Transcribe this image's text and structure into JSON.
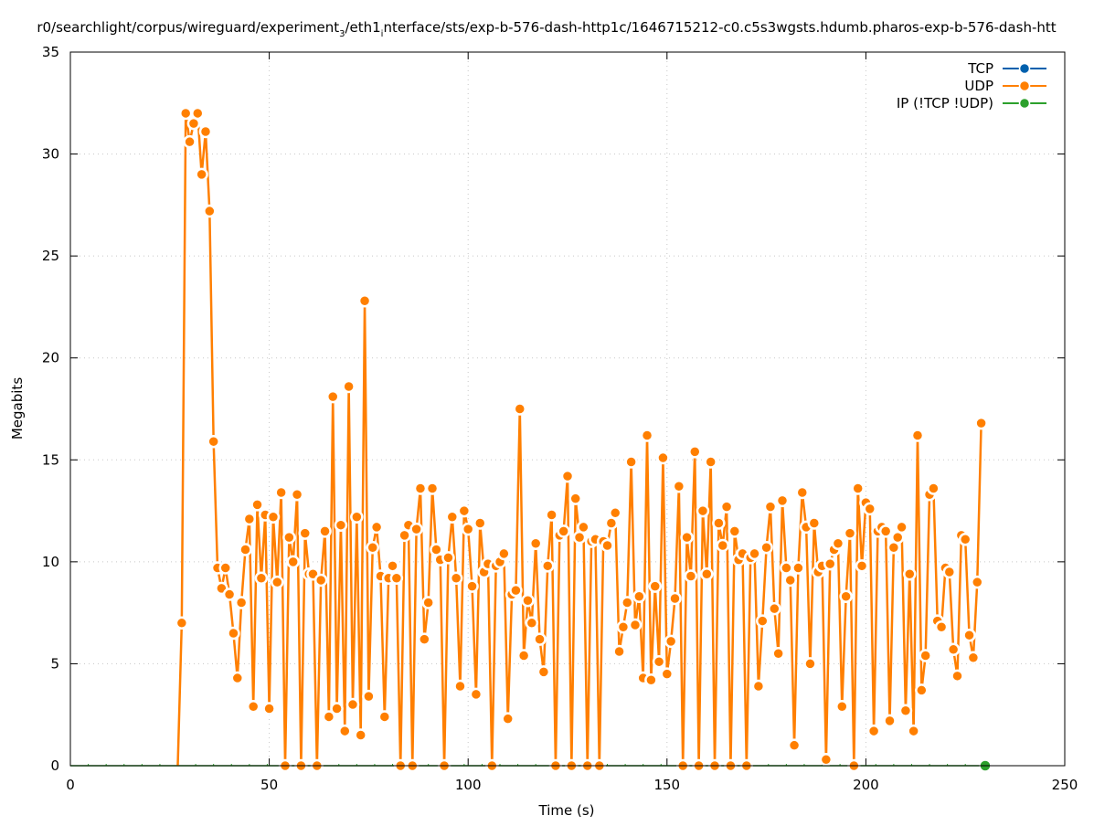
{
  "chart_data": {
    "type": "line",
    "title_parts": [
      "r0/searchlight/corpus/wireguard/experiment",
      "3",
      "/eth1",
      "i",
      "nterface/sts/exp-b-576-dash-http1c/1646715212-c0.c5s3wgsts.hdumb.pharos-exp-b-576-dash-htt"
    ],
    "xlabel": "Time (s)",
    "ylabel": "Megabits",
    "xlim": [
      0,
      250
    ],
    "ylim": [
      0,
      35
    ],
    "xticks": [
      0,
      50,
      100,
      150,
      200,
      250
    ],
    "yticks": [
      0,
      5,
      10,
      15,
      20,
      25,
      30,
      35
    ],
    "grid": true,
    "legend_position": "top-right",
    "series": [
      {
        "name": "TCP",
        "color": "#0060ad",
        "x": [],
        "values": []
      },
      {
        "name": "UDP",
        "color": "#ff7f00",
        "x_start": 27,
        "x_step": 1,
        "values": [
          0,
          7.0,
          32.0,
          30.6,
          31.5,
          32.0,
          29.0,
          31.1,
          27.2,
          15.9,
          9.7,
          8.7,
          9.7,
          8.4,
          6.5,
          4.3,
          8.0,
          10.6,
          12.1,
          2.9,
          12.8,
          9.2,
          12.3,
          2.8,
          12.2,
          9.0,
          13.4,
          0,
          11.2,
          10.0,
          13.3,
          0,
          11.4,
          9.4,
          9.4,
          0,
          9.1,
          11.5,
          2.4,
          18.1,
          2.8,
          11.8,
          1.7,
          18.6,
          3.0,
          12.2,
          1.5,
          22.8,
          3.4,
          10.7,
          11.7,
          9.3,
          2.4,
          9.2,
          9.8,
          9.2,
          0,
          11.3,
          11.8,
          0,
          11.6,
          13.6,
          6.2,
          8.0,
          13.6,
          10.6,
          10.1,
          0,
          10.2,
          12.2,
          9.2,
          3.9,
          12.5,
          11.6,
          8.8,
          3.5,
          11.9,
          9.5,
          9.9,
          0,
          9.8,
          10.0,
          10.4,
          2.3,
          8.4,
          8.6,
          17.5,
          5.4,
          8.1,
          7.0,
          10.9,
          6.2,
          4.6,
          9.8,
          12.3,
          0,
          11.3,
          11.5,
          14.2,
          0,
          13.1,
          11.2,
          11.7,
          0,
          11.0,
          11.1,
          0,
          11.0,
          10.8,
          11.9,
          12.4,
          5.6,
          6.8,
          8.0,
          14.9,
          6.9,
          8.3,
          4.3,
          16.2,
          4.2,
          8.8,
          5.1,
          15.1,
          4.5,
          6.1,
          8.2,
          13.7,
          0,
          11.2,
          9.3,
          15.4,
          0,
          12.5,
          9.4,
          14.9,
          0,
          11.9,
          10.8,
          12.7,
          0,
          11.5,
          10.1,
          10.4,
          0,
          10.2,
          10.4,
          3.9,
          7.1,
          10.7,
          12.7,
          7.7,
          5.5,
          13.0,
          9.7,
          9.1,
          1.0,
          9.7,
          13.4,
          11.7,
          5.0,
          11.9,
          9.5,
          9.8,
          0.3,
          9.9,
          10.6,
          10.9,
          2.9,
          8.3,
          11.4,
          0,
          13.6,
          9.8,
          12.9,
          12.6,
          1.7,
          11.5,
          11.7,
          11.5,
          2.2,
          10.7,
          11.2,
          11.7,
          2.7,
          9.4,
          1.7,
          16.2,
          3.7,
          5.4,
          13.3,
          13.6,
          7.1,
          6.8,
          9.7,
          9.5,
          5.7,
          4.4,
          11.3,
          11.1,
          6.4,
          5.3,
          9.0,
          16.8
        ]
      },
      {
        "name": "IP (!TCP  !UDP)",
        "color": "#2ca02c",
        "x": [
          0,
          230
        ],
        "values": [
          0,
          0
        ],
        "marker_x": [
          230
        ],
        "marker_values": [
          0
        ]
      }
    ]
  }
}
